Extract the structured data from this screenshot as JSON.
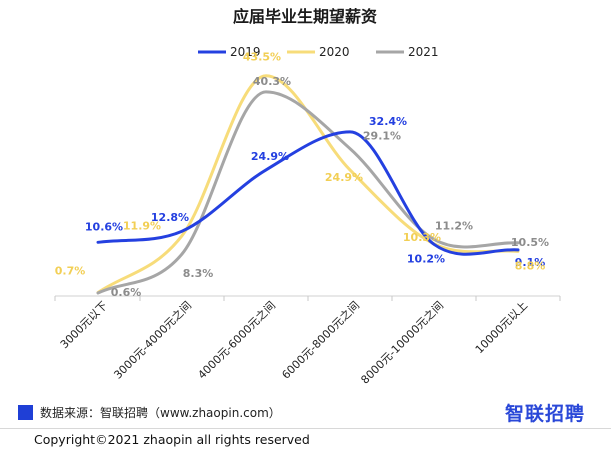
{
  "chart_data": {
    "type": "line",
    "title": "应届毕业生期望薪资",
    "categories": [
      "3000元以下",
      "3000元-4000元之间",
      "4000元-6000元之间",
      "6000元-8000元之间",
      "8000元-10000元之间",
      "10000元以上"
    ],
    "series": [
      {
        "name": "2019",
        "color": "#2440e0",
        "values": [
          10.6,
          12.8,
          24.9,
          32.4,
          10.2,
          9.1
        ],
        "labels": [
          "10.6%",
          "12.8%",
          "24.9%",
          "32.4%",
          "10.2%",
          "9.1%"
        ]
      },
      {
        "name": "2020",
        "color": "#f7dc7a",
        "values": [
          0.7,
          11.9,
          43.5,
          24.9,
          10.3,
          8.8
        ],
        "labels": [
          "0.7%",
          "11.9%",
          "43.5%",
          "24.9%",
          "10.3%",
          "8.8%"
        ]
      },
      {
        "name": "2021",
        "color": "#a6a6a6",
        "values": [
          0.6,
          8.3,
          40.3,
          29.1,
          11.2,
          10.5
        ],
        "labels": [
          "0.6%",
          "8.3%",
          "40.3%",
          "29.1%",
          "11.2%",
          "10.5%"
        ]
      }
    ],
    "ylim": [
      0,
      46
    ],
    "grid": false,
    "legend": "top-center",
    "xlabel": "",
    "ylabel": ""
  },
  "footer": {
    "source": "数据来源：智联招聘（www.zhaopin.com）",
    "logo": "智联招聘",
    "copyright": "Copyright©2021 zhaopin all rights reserved"
  }
}
